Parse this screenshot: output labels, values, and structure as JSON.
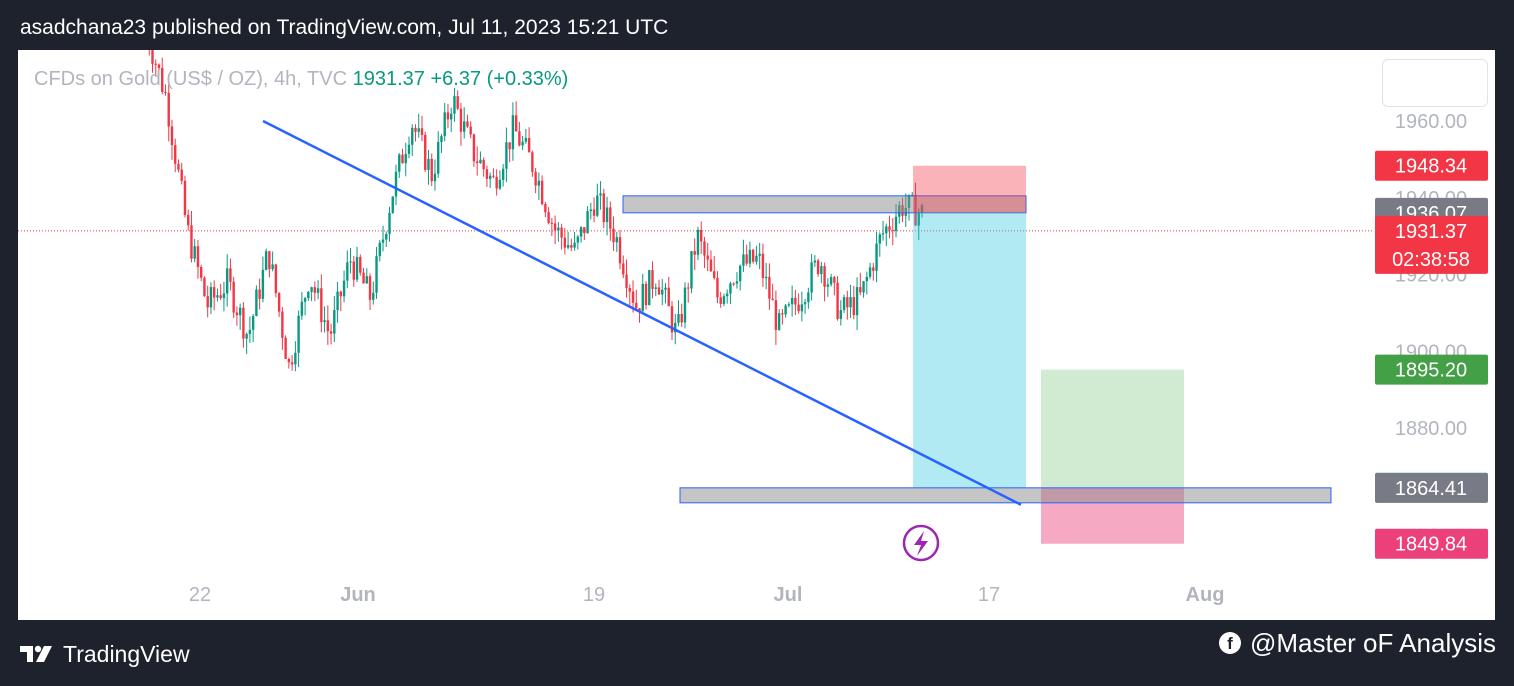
{
  "header": {
    "text": "asadchana23 published on TradingView.com, Jul 11, 2023 15:21 UTC"
  },
  "symbol": {
    "name": "CFDs on Gold (US$ / OZ), 4h, TVC",
    "price": "1931.37",
    "change": "+6.37 (+0.33%)"
  },
  "footer": {
    "brand": "TradingView",
    "credit": "@Master oF Analysis",
    "facebook_icon": "facebook-icon",
    "logo_icon": "tradingview-logo-icon"
  },
  "colors": {
    "up": "#089981",
    "down": "#f23645",
    "trendline": "#2962ff",
    "stop_zone": "#f7a8b0",
    "target_zone": "#b2ebf2",
    "tp_zone": "#d4ecd4",
    "sl_zone": "#f5a5c0",
    "bg": "#1e222d"
  },
  "chart_data": {
    "type": "candlestick",
    "timeframe": "4h",
    "x_ticks": [
      "22",
      "Jun",
      "19",
      "Jul",
      "17",
      "Aug"
    ],
    "y_ticks": [
      1960,
      1940,
      1920,
      1900,
      1880
    ],
    "y_tick_labels": [
      "1960.00",
      "1940.00",
      "1920.00",
      "1900.00",
      "1880.00"
    ],
    "ylim": [
      1834,
      1973
    ],
    "last_price": 1931.37,
    "countdown": "02:38:58",
    "price_labels": [
      {
        "value": "1948.34",
        "color": "#f23645"
      },
      {
        "value": "1936.07",
        "color": "#787b86"
      },
      {
        "value": "1895.20",
        "color": "#43a047"
      },
      {
        "value": "1864.44",
        "color": "#4dd0e1"
      },
      {
        "value": "1864.41",
        "color": "#787b86"
      },
      {
        "value": "1849.84",
        "color": "#ec407a"
      }
    ],
    "anchor_prices": [
      1984,
      1966,
      1932,
      1912,
      1918,
      1904,
      1926,
      1896,
      1920,
      1904,
      1924,
      1914,
      1940,
      1960,
      1946,
      1966,
      1952,
      1944,
      1958,
      1948,
      1932,
      1926,
      1940,
      1930,
      1912,
      1920,
      1904,
      1930,
      1914,
      1922,
      1924,
      1906,
      1914,
      1924,
      1910,
      1914,
      1930,
      1938,
      1936
    ],
    "short_position": {
      "entry": 1936.07,
      "stop": 1948.34,
      "target": 1864.44
    },
    "long_position": {
      "entry": 1864.41,
      "stop": 1849.84,
      "target": 1895.2
    },
    "resistance_zone": [
      1936.07,
      1940.5
    ],
    "support_zone": [
      1864.41,
      1860.5
    ],
    "trendline": {
      "from": 1960,
      "to": 1860
    },
    "grid": false
  }
}
